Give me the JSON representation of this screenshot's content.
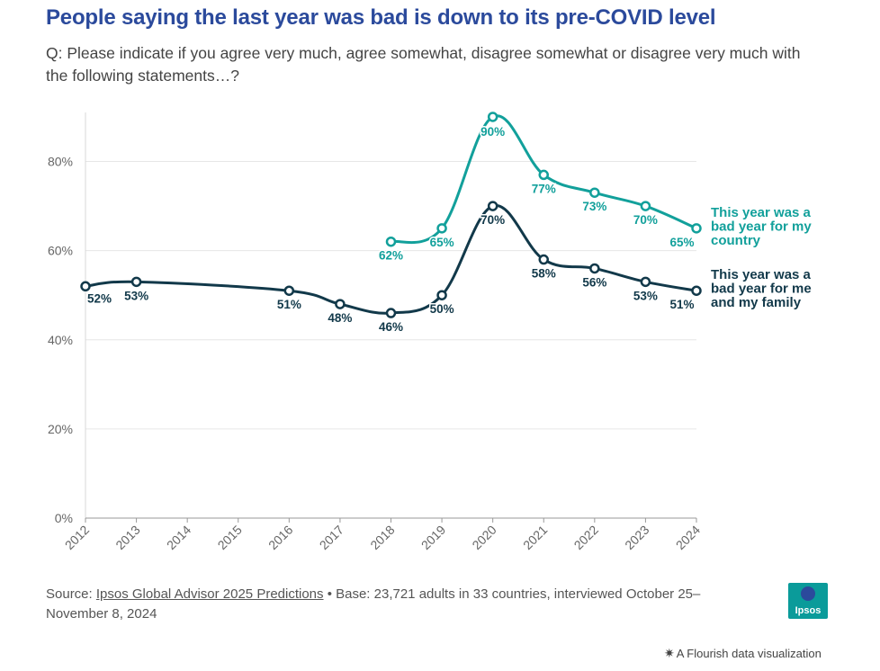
{
  "header": {
    "title": "People saying the last year was bad is down to its pre-COVID level",
    "subtitle": "Q: Please indicate if you agree very much, agree somewhat, disagree somewhat or disagree very much with the following statements…?"
  },
  "footer": {
    "source_prefix": "Source: ",
    "source_link": "Ipsos Global Advisor 2025 Predictions",
    "source_suffix": " • Base: 23,721 adults in 33 countries, interviewed October 25–November 8, 2024",
    "logo_text": "Ipsos",
    "flourish_text": "A Flourish data visualization"
  },
  "colors": {
    "country": "#12a09b",
    "family": "#12394a",
    "grid": "#e6e6e6",
    "title": "#2b4a9c"
  },
  "chart_data": {
    "type": "line",
    "x": [
      "2012",
      "2013",
      "2014",
      "2015",
      "2016",
      "2017",
      "2018",
      "2019",
      "2020",
      "2021",
      "2022",
      "2023",
      "2024"
    ],
    "y_ticks": [
      "0%",
      "20%",
      "40%",
      "60%",
      "80%"
    ],
    "ylim": [
      0,
      90
    ],
    "grid": true,
    "legend": "inline-right",
    "series": [
      {
        "name": "This year was a bad year for my country",
        "label_lines": [
          "This year was a",
          "bad year for my",
          "country"
        ],
        "color": "#12a09b",
        "points": [
          {
            "x": "2018",
            "y": 62,
            "label": "62%"
          },
          {
            "x": "2019",
            "y": 65,
            "label": "65%"
          },
          {
            "x": "2020",
            "y": 90,
            "label": "90%"
          },
          {
            "x": "2021",
            "y": 77,
            "label": "77%"
          },
          {
            "x": "2022",
            "y": 73,
            "label": "73%"
          },
          {
            "x": "2023",
            "y": 70,
            "label": "70%"
          },
          {
            "x": "2024",
            "y": 65,
            "label": "65%"
          }
        ]
      },
      {
        "name": "This year was a bad year for me and my family",
        "label_lines": [
          "This year was a",
          "bad year for me",
          "and my family"
        ],
        "color": "#12394a",
        "points": [
          {
            "x": "2012",
            "y": 52,
            "label": "52%"
          },
          {
            "x": "2013",
            "y": 53,
            "label": "53%"
          },
          {
            "x": "2016",
            "y": 51,
            "label": "51%"
          },
          {
            "x": "2017",
            "y": 48,
            "label": "48%"
          },
          {
            "x": "2018",
            "y": 46,
            "label": "46%"
          },
          {
            "x": "2019",
            "y": 50,
            "label": "50%"
          },
          {
            "x": "2020",
            "y": 70,
            "label": "70%"
          },
          {
            "x": "2021",
            "y": 58,
            "label": "58%"
          },
          {
            "x": "2022",
            "y": 56,
            "label": "56%"
          },
          {
            "x": "2023",
            "y": 53,
            "label": "53%"
          },
          {
            "x": "2024",
            "y": 51,
            "label": "51%"
          }
        ]
      }
    ]
  }
}
